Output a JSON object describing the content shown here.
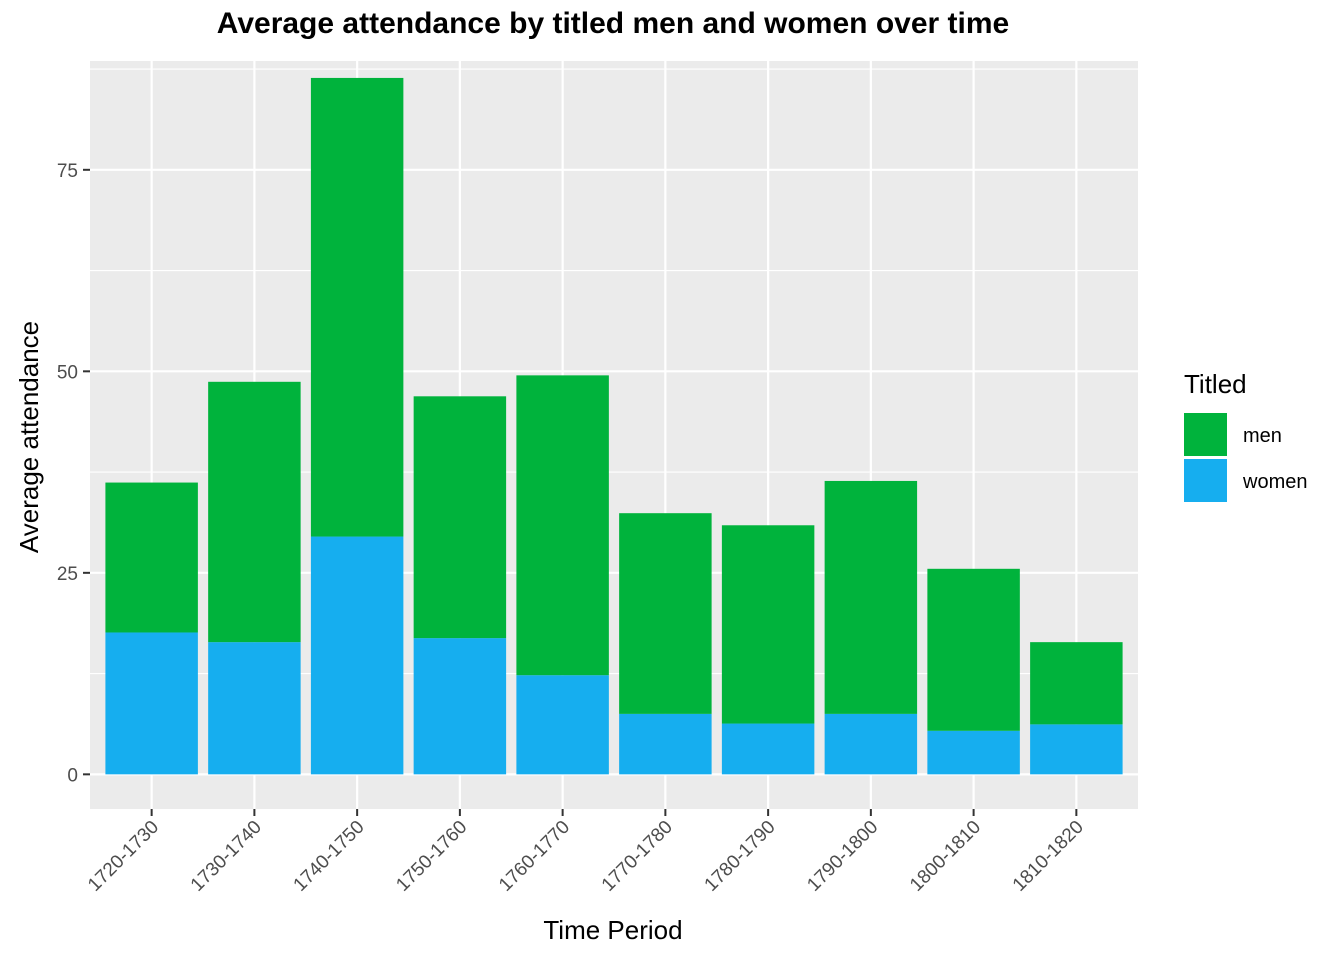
{
  "chart_data": {
    "type": "bar",
    "stacked": true,
    "title": "Average attendance by titled men and women over time",
    "xlabel": "Time Period",
    "ylabel": "Average attendance",
    "categories": [
      "1720-1730",
      "1730-1740",
      "1740-1750",
      "1750-1760",
      "1760-1770",
      "1770-1780",
      "1780-1790",
      "1790-1800",
      "1800-1810",
      "1810-1820"
    ],
    "series": [
      {
        "name": "men",
        "color": "#00b33c",
        "values": [
          18.6,
          32.3,
          56.9,
          30.0,
          37.2,
          24.9,
          24.6,
          28.9,
          20.1,
          10.2
        ]
      },
      {
        "name": "women",
        "color": "#16aeef",
        "values": [
          17.6,
          16.4,
          29.5,
          16.9,
          12.3,
          7.5,
          6.3,
          7.5,
          5.4,
          6.2
        ]
      }
    ],
    "stack_order_bottom_to_top": [
      "women",
      "men"
    ],
    "ylim": [
      -4.3,
      88.5
    ],
    "yticks": [
      0,
      25,
      50,
      75
    ],
    "grid": true,
    "panel_background": "#ebebeb",
    "legend": {
      "title": "Titled",
      "position": "right"
    }
  }
}
